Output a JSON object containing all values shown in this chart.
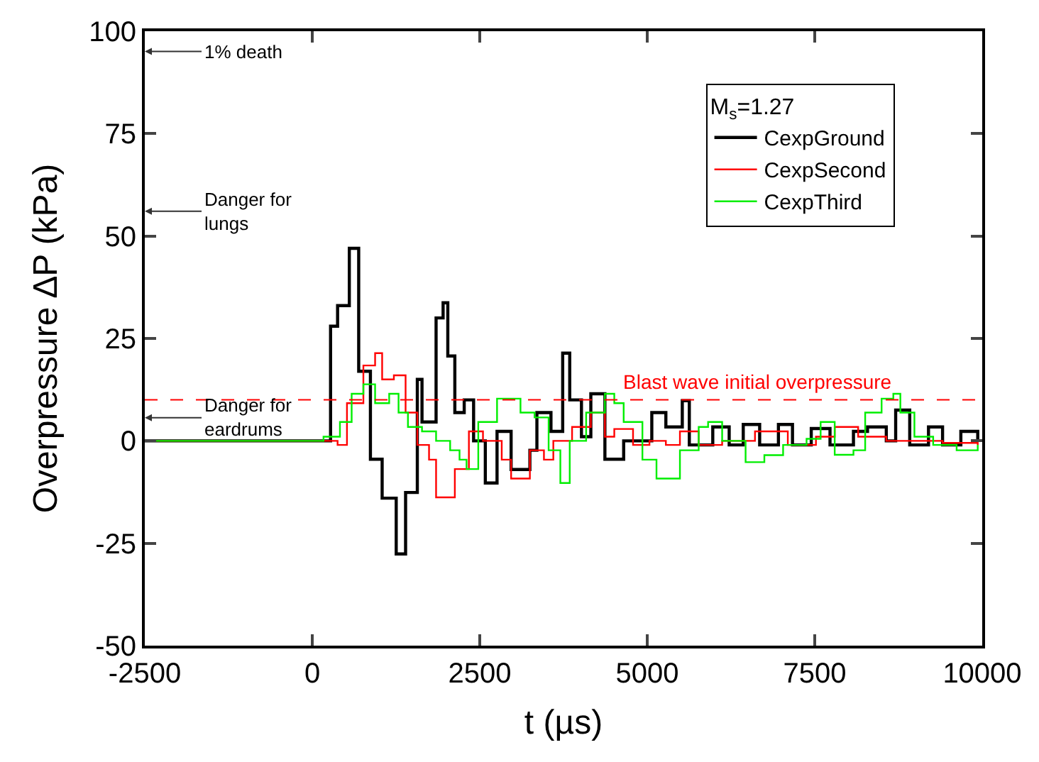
{
  "chart_data": {
    "type": "step",
    "xlabel": "t (µs)",
    "ylabel": "Overpressure ∆P (kPa)",
    "legend_title": "M$_{s}$=1.27",
    "xlim": [
      -2500,
      10000
    ],
    "xticks": [
      -2500,
      0,
      2500,
      5000,
      7500,
      10000
    ],
    "ylim": [
      -50,
      100
    ],
    "yticks": [
      -50,
      -25,
      0,
      25,
      50,
      75,
      100
    ],
    "legend": "top right",
    "marker": "none",
    "line_style": "solid",
    "series": [
      {
        "name": "CexpGround",
        "color": "#000000",
        "x": [
          -2500,
          250,
          273,
          378,
          553,
          693,
          868,
          1043,
          1253,
          1393,
          1568,
          1638,
          1848,
          1953,
          2023,
          2128,
          2268,
          2408,
          2583,
          2758,
          2968,
          3248,
          3353,
          3563,
          3738,
          3843,
          4018,
          4158,
          4368,
          4648,
          5068,
          5278,
          5523,
          5628,
          5978,
          6223,
          6433,
          6678,
          6958,
          7168,
          7448,
          7728,
          8078,
          8288,
          8568,
          8708,
          8918,
          9198,
          9408,
          9681,
          9933
        ],
        "values": [
          0,
          0,
          28,
          33,
          47,
          17,
          -4.5,
          -14,
          -27.6,
          -12.6,
          15,
          4.6,
          30,
          33.7,
          20.7,
          6.9,
          10,
          0,
          -10.3,
          2.3,
          -7,
          -2.3,
          6.9,
          2.3,
          21.4,
          10,
          1,
          11.5,
          -4.5,
          0,
          6.9,
          3.4,
          9.8,
          -1,
          3.4,
          -1,
          4,
          -1,
          4,
          -1,
          3,
          -1,
          2.3,
          3.4,
          0,
          7.5,
          -1,
          3.4,
          -1,
          2.3,
          0
        ]
      },
      {
        "name": "CexpSecond",
        "color": "#ff0000",
        "x": [
          -2500,
          300,
          378,
          518,
          763,
          938,
          1043,
          1218,
          1393,
          1568,
          1743,
          1848,
          2128,
          2338,
          2548,
          2828,
          2968,
          3248,
          3458,
          3598,
          3878,
          4158,
          4368,
          4508,
          4788,
          5033,
          5278,
          5488,
          5768,
          6118,
          6608,
          7098,
          7518,
          7798,
          8148,
          8568,
          8988,
          9408,
          9933
        ],
        "values": [
          0,
          0,
          -1,
          9.2,
          18.4,
          21.4,
          15,
          16,
          6.9,
          -1,
          -4.6,
          -13.8,
          -6.9,
          2.3,
          0,
          -4.6,
          -9.2,
          -2.3,
          -4.6,
          0,
          3.4,
          6.9,
          1,
          2.9,
          -1,
          0,
          -1,
          2.3,
          -1,
          0,
          2.3,
          -1,
          1,
          3.4,
          1,
          0,
          0,
          -0.5,
          -1
        ]
      },
      {
        "name": "CexpThird",
        "color": "#00ee00",
        "x": [
          -2500,
          168,
          413,
          588,
          763,
          938,
          1148,
          1288,
          1428,
          1638,
          1848,
          2058,
          2198,
          2303,
          2478,
          2758,
          2968,
          3108,
          3318,
          3528,
          3703,
          3843,
          4088,
          4368,
          4508,
          4648,
          4928,
          5138,
          5488,
          5768,
          5908,
          6118,
          6468,
          6748,
          7028,
          7378,
          7588,
          7798,
          8078,
          8253,
          8498,
          8673,
          8778,
          8988,
          9268,
          9618,
          9933
        ],
        "values": [
          0,
          1,
          4.6,
          11.5,
          13.8,
          9.2,
          11.5,
          6.9,
          3.4,
          2.3,
          0,
          -2.3,
          -4.6,
          -6.9,
          4.6,
          10.3,
          10.3,
          6.9,
          5.7,
          -2.3,
          -10.3,
          0,
          6.9,
          11.5,
          9.2,
          4.6,
          -4.6,
          -9.2,
          -2.3,
          3.4,
          4.6,
          0,
          -5.2,
          -3.5,
          -1,
          0.5,
          4.6,
          -3.4,
          -2.3,
          6.9,
          10.3,
          11.5,
          6.9,
          1,
          -1,
          -2.3,
          -1
        ]
      }
    ],
    "ref_lines": [
      {
        "axis": "y",
        "value": 10,
        "label": "Blast wave initial overpressure",
        "color": "#ff0000",
        "line_style": "dashed"
      }
    ],
    "annotations": [
      "1% death",
      "Danger for\nlungs",
      "Danger for\neardrums"
    ]
  }
}
